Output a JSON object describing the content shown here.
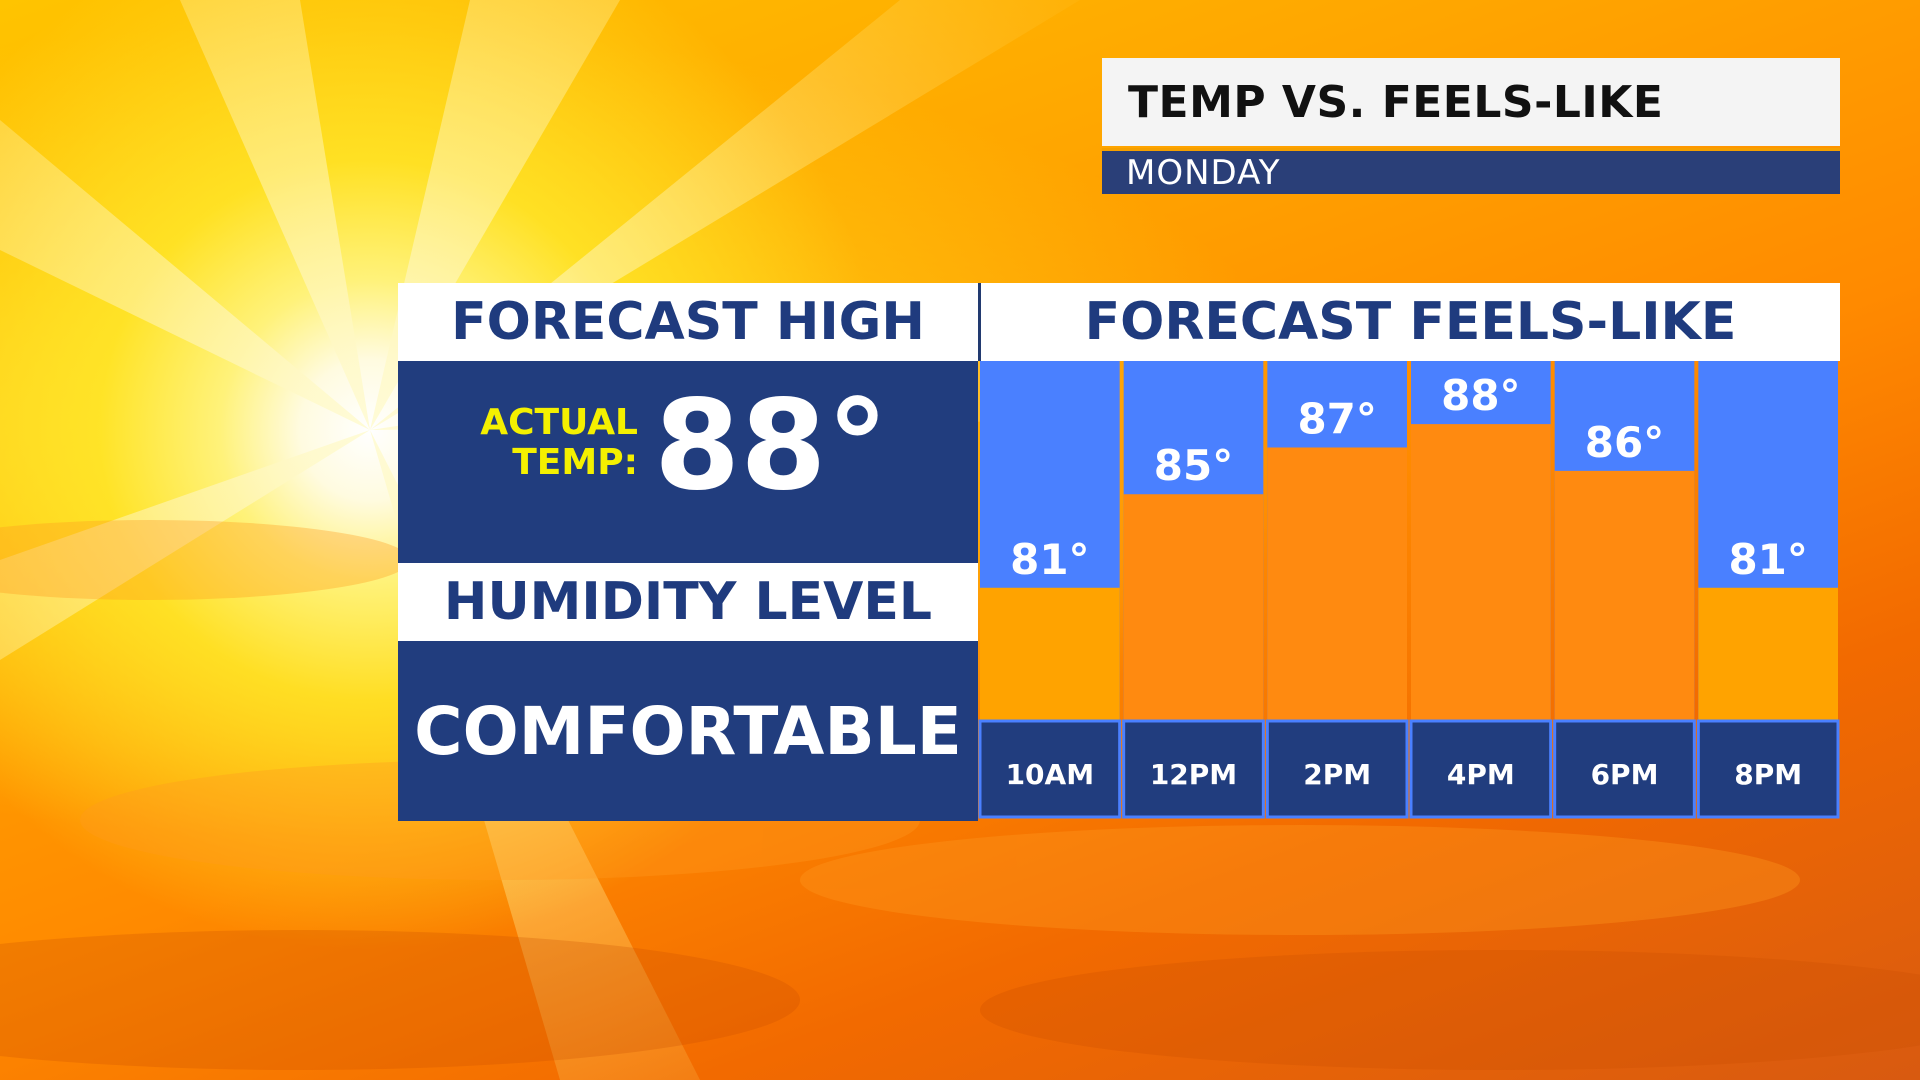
{
  "header": {
    "title": "TEMP VS. FEELS-LIKE",
    "day": "MONDAY"
  },
  "forecast_high": {
    "heading": "FORECAST HIGH",
    "label_line1": "ACTUAL",
    "label_line2": "TEMP:",
    "value": "88°"
  },
  "humidity": {
    "heading": "HUMIDITY LEVEL",
    "value": "COMFORTABLE"
  },
  "colors": {
    "panel_blue": "#213d7e",
    "chart_bg": "#4a80ff",
    "bar_low": "#ffa300",
    "bar_high": "#ff8a10",
    "label_yellow": "#f4f000"
  },
  "chart_data": {
    "type": "bar",
    "title": "FORECAST FEELS-LIKE",
    "categories": [
      "10AM",
      "12PM",
      "2PM",
      "4PM",
      "6PM",
      "8PM"
    ],
    "values": [
      81,
      85,
      87,
      88,
      86,
      81
    ],
    "value_labels": [
      "81°",
      "85°",
      "87°",
      "88°",
      "86°",
      "81°"
    ],
    "ylim": [
      75.3,
      90.7
    ],
    "grid": false,
    "legend": "none"
  }
}
